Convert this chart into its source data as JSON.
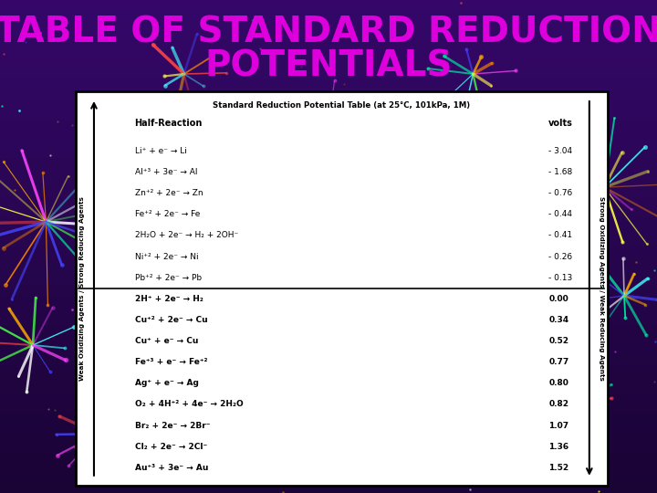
{
  "title_line1": "TABLE OF STANDARD REDUCTION",
  "title_line2": "POTENTIALS",
  "title_color": "#DD00DD",
  "title_fontsize": 28,
  "table_title": "Standard Reduction Potential Table (at 25°C, 101kPa, 1M)",
  "col_headers": [
    "Half-Reaction",
    "volts"
  ],
  "rows": [
    [
      "Li⁺ + e⁻ → Li",
      "- 3.04"
    ],
    [
      "Al⁺³ + 3e⁻ → Al",
      "- 1.68"
    ],
    [
      "Zn⁺² + 2e⁻ → Zn",
      "- 0.76"
    ],
    [
      "Fe⁺² + 2e⁻ → Fe",
      "- 0.44"
    ],
    [
      "2H₂O + 2e⁻ → H₂ + 2OH⁻",
      "- 0.41"
    ],
    [
      "Ni⁺² + 2e⁻ → Ni",
      "- 0.26"
    ],
    [
      "Pb⁺² + 2e⁻ → Pb",
      "- 0.13"
    ],
    [
      "2H⁺ + 2e⁻ → H₂",
      "0.00"
    ],
    [
      "Cu⁺² + 2e⁻ → Cu",
      "0.34"
    ],
    [
      "Cu⁺ + e⁻ → Cu",
      "0.52"
    ],
    [
      "Fe⁺³ + e⁻ → Fe⁺²",
      "0.77"
    ],
    [
      "Ag⁺ + e⁻ → Ag",
      "0.80"
    ],
    [
      "O₂ + 4H⁺² + 4e⁻ → 2H₂O",
      "0.82"
    ],
    [
      "Br₂ + 2e⁻ → 2Br⁻",
      "1.07"
    ],
    [
      "Cl₂ + 2e⁻ → 2Cl⁻",
      "1.36"
    ],
    [
      "Au⁺³ + 3e⁻ → Au",
      "1.52"
    ]
  ],
  "left_label": "Weak Oxidizing Agents / Strong Reducing Agents",
  "right_label": "Strong Oxidizing Agents / Weak Reducing Agents",
  "separator_row": 7,
  "bg_dark": "#1a0535",
  "bg_mid": "#2d0a5a",
  "firework_colors": [
    "#ff4444",
    "#44ff44",
    "#4444ff",
    "#ffff44",
    "#ff44ff",
    "#44ffff",
    "#ffffff",
    "#ffaa00",
    "#ff8800",
    "#00ffaa"
  ]
}
